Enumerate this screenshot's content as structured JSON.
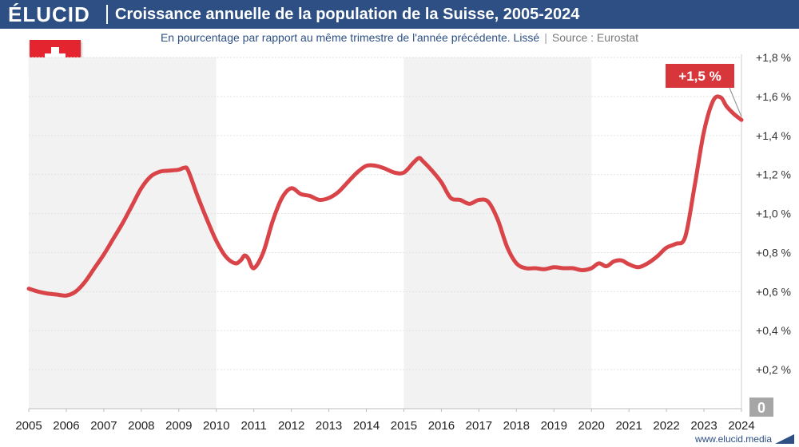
{
  "header": {
    "brand": "ÉLUCID",
    "title": "Croissance annuelle de la population de la Suisse, 2005-2024"
  },
  "subtitle": {
    "main": "En pourcentage par rapport au même trimestre de l'année précédente. Lissé",
    "separator": "|",
    "source": "Source : Eurostat"
  },
  "footer": {
    "url": "www.elucid.media"
  },
  "colors": {
    "header_bg": "#2d4f84",
    "line": "#d94449",
    "band": "#f2f2f2",
    "label_bg": "#d7363b",
    "zero_box": "#a6a6a6"
  },
  "icons": {
    "flag": "swiss-flag-icon",
    "footer_logo": "elucid-mark-icon"
  },
  "chart_data": {
    "type": "line",
    "title": "Croissance annuelle de la population de la Suisse, 2005-2024",
    "xlabel": "",
    "ylabel": "",
    "xlim": [
      2005,
      2024
    ],
    "ylim": [
      0,
      1.8
    ],
    "x_ticks": [
      "2005",
      "2006",
      "2007",
      "2008",
      "2009",
      "2010",
      "2011",
      "2012",
      "2013",
      "2014",
      "2015",
      "2016",
      "2017",
      "2018",
      "2019",
      "2020",
      "2021",
      "2022",
      "2023",
      "2024"
    ],
    "y_ticks": [
      {
        "value": 0.2,
        "label": "+0,2 %"
      },
      {
        "value": 0.4,
        "label": "+0,4 %"
      },
      {
        "value": 0.6,
        "label": "+0,6 %"
      },
      {
        "value": 0.8,
        "label": "+0,8 %"
      },
      {
        "value": 1.0,
        "label": "+1,0 %"
      },
      {
        "value": 1.2,
        "label": "+1,2 %"
      },
      {
        "value": 1.4,
        "label": "+1,4 %"
      },
      {
        "value": 1.6,
        "label": "+1,6 %"
      },
      {
        "value": 1.8,
        "label": "+1,8 %"
      }
    ],
    "zero_label": "0",
    "shaded_ranges": [
      [
        2005,
        2010
      ],
      [
        2015,
        2020
      ]
    ],
    "grid": true,
    "last_value_label": "+1,5 %",
    "series": [
      {
        "points": [
          [
            2005.0,
            0.615
          ],
          [
            2005.25,
            0.6
          ],
          [
            2005.5,
            0.59
          ],
          [
            2005.75,
            0.585
          ],
          [
            2006.0,
            0.58
          ],
          [
            2006.25,
            0.6
          ],
          [
            2006.5,
            0.65
          ],
          [
            2006.75,
            0.72
          ],
          [
            2007.0,
            0.79
          ],
          [
            2007.25,
            0.87
          ],
          [
            2007.5,
            0.95
          ],
          [
            2007.75,
            1.04
          ],
          [
            2008.0,
            1.13
          ],
          [
            2008.25,
            1.19
          ],
          [
            2008.5,
            1.215
          ],
          [
            2008.75,
            1.22
          ],
          [
            2009.0,
            1.225
          ],
          [
            2009.15,
            1.235
          ],
          [
            2009.25,
            1.22
          ],
          [
            2009.5,
            1.09
          ],
          [
            2009.75,
            0.97
          ],
          [
            2010.0,
            0.86
          ],
          [
            2010.25,
            0.78
          ],
          [
            2010.5,
            0.745
          ],
          [
            2010.65,
            0.76
          ],
          [
            2010.75,
            0.785
          ],
          [
            2010.85,
            0.77
          ],
          [
            2011.0,
            0.72
          ],
          [
            2011.25,
            0.8
          ],
          [
            2011.5,
            0.96
          ],
          [
            2011.75,
            1.08
          ],
          [
            2012.0,
            1.13
          ],
          [
            2012.25,
            1.1
          ],
          [
            2012.5,
            1.09
          ],
          [
            2012.75,
            1.07
          ],
          [
            2013.0,
            1.08
          ],
          [
            2013.25,
            1.11
          ],
          [
            2013.5,
            1.16
          ],
          [
            2013.75,
            1.21
          ],
          [
            2014.0,
            1.245
          ],
          [
            2014.25,
            1.245
          ],
          [
            2014.5,
            1.23
          ],
          [
            2014.75,
            1.21
          ],
          [
            2015.0,
            1.21
          ],
          [
            2015.25,
            1.26
          ],
          [
            2015.4,
            1.285
          ],
          [
            2015.5,
            1.27
          ],
          [
            2015.75,
            1.22
          ],
          [
            2016.0,
            1.16
          ],
          [
            2016.25,
            1.08
          ],
          [
            2016.5,
            1.07
          ],
          [
            2016.75,
            1.05
          ],
          [
            2017.0,
            1.07
          ],
          [
            2017.25,
            1.06
          ],
          [
            2017.5,
            0.97
          ],
          [
            2017.75,
            0.83
          ],
          [
            2018.0,
            0.745
          ],
          [
            2018.25,
            0.72
          ],
          [
            2018.5,
            0.72
          ],
          [
            2018.75,
            0.715
          ],
          [
            2019.0,
            0.725
          ],
          [
            2019.25,
            0.72
          ],
          [
            2019.5,
            0.72
          ],
          [
            2019.75,
            0.71
          ],
          [
            2020.0,
            0.72
          ],
          [
            2020.2,
            0.745
          ],
          [
            2020.4,
            0.73
          ],
          [
            2020.6,
            0.755
          ],
          [
            2020.8,
            0.76
          ],
          [
            2021.0,
            0.74
          ],
          [
            2021.25,
            0.725
          ],
          [
            2021.5,
            0.745
          ],
          [
            2021.75,
            0.78
          ],
          [
            2022.0,
            0.825
          ],
          [
            2022.25,
            0.845
          ],
          [
            2022.5,
            0.88
          ],
          [
            2022.75,
            1.14
          ],
          [
            2023.0,
            1.42
          ],
          [
            2023.25,
            1.58
          ],
          [
            2023.45,
            1.595
          ],
          [
            2023.6,
            1.55
          ],
          [
            2023.8,
            1.51
          ],
          [
            2024.0,
            1.48
          ]
        ]
      }
    ]
  }
}
